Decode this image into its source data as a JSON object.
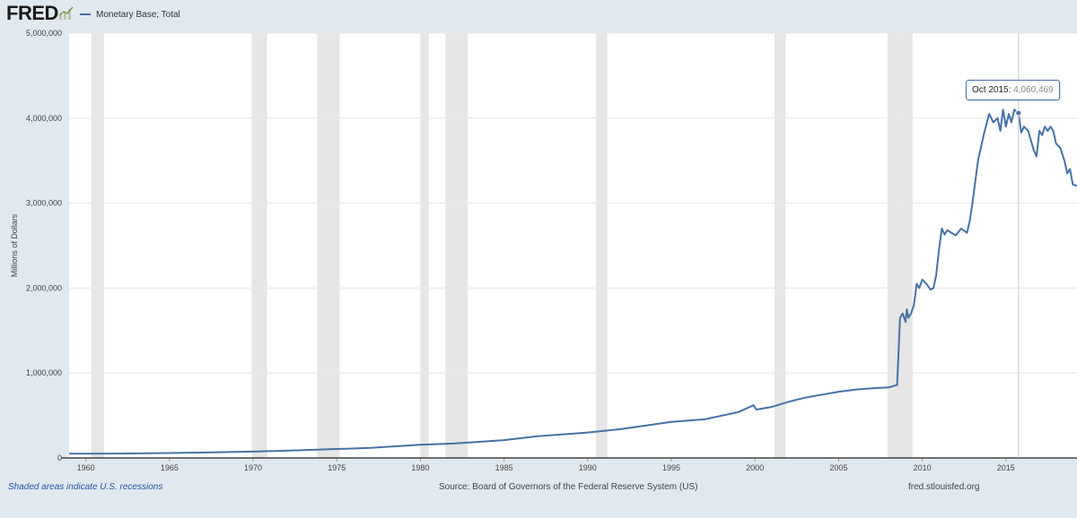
{
  "header": {
    "logo_text": "FRED",
    "logo_icon": "fred-chart-logo-icon"
  },
  "legend": {
    "label": "Monetary Base; Total",
    "color": "#4572a7"
  },
  "tooltip": {
    "date": "Oct 2015:",
    "value": "4,060,469"
  },
  "footer": {
    "note": "Shaded areas indicate U.S. recessions",
    "source": "Source: Board of Governors of the Federal Reserve System (US)",
    "url": "fred.stlouisfed.org"
  },
  "colors": {
    "page_background": "#e1e9f0",
    "plot_background": "#ffffff",
    "recession_shade": "#e6e6e6",
    "line": "#4572a7",
    "note_link": "#2255aa"
  },
  "chart_data": {
    "type": "line",
    "title": "",
    "xlabel": "",
    "ylabel": "Millions of Dollars",
    "xlim": [
      1959.0,
      2019.25
    ],
    "ylim": [
      0,
      5000000
    ],
    "x_ticks": [
      1960,
      1965,
      1970,
      1975,
      1980,
      1985,
      1990,
      1995,
      2000,
      2005,
      2010,
      2015
    ],
    "x_tick_labels": [
      "1960",
      "1965",
      "1970",
      "1975",
      "1980",
      "1985",
      "1990",
      "1995",
      "2000",
      "2005",
      "2010",
      "2015"
    ],
    "y_ticks": [
      0,
      1000000,
      2000000,
      3000000,
      4000000,
      5000000
    ],
    "y_tick_labels": [
      "0",
      "1,000,000",
      "2,000,000",
      "3,000,000",
      "4,000,000",
      "5,000,000"
    ],
    "grid": "horizontal",
    "legend_position": "top-left",
    "recessions": [
      [
        1960.33,
        1961.08
      ],
      [
        1969.92,
        1970.83
      ],
      [
        1973.83,
        1975.17
      ],
      [
        1980.0,
        1980.5
      ],
      [
        1981.5,
        1982.83
      ],
      [
        1990.5,
        1991.17
      ],
      [
        2001.17,
        2001.83
      ],
      [
        2007.92,
        2009.42
      ]
    ],
    "highlight": {
      "x": 2015.75,
      "y": 4060469
    },
    "series": [
      {
        "name": "Monetary Base; Total",
        "x": [
          1959.0,
          1960.0,
          1962.0,
          1965.0,
          1968.0,
          1970.0,
          1972.0,
          1975.0,
          1977.0,
          1980.0,
          1982.0,
          1985.0,
          1987.0,
          1990.0,
          1992.0,
          1995.0,
          1997.0,
          1999.0,
          1999.92,
          2000.08,
          2001.0,
          2002.0,
          2003.0,
          2005.0,
          2006.0,
          2007.0,
          2008.0,
          2008.5,
          2008.67,
          2008.83,
          2009.0,
          2009.08,
          2009.17,
          2009.33,
          2009.5,
          2009.67,
          2009.83,
          2010.0,
          2010.25,
          2010.5,
          2010.67,
          2010.83,
          2011.0,
          2011.17,
          2011.33,
          2011.5,
          2011.75,
          2012.0,
          2012.33,
          2012.67,
          2012.83,
          2013.0,
          2013.33,
          2013.67,
          2014.0,
          2014.25,
          2014.5,
          2014.67,
          2014.83,
          2015.0,
          2015.17,
          2015.33,
          2015.5,
          2015.75,
          2015.92,
          2016.08,
          2016.33,
          2016.67,
          2016.83,
          2017.0,
          2017.17,
          2017.33,
          2017.5,
          2017.67,
          2017.83,
          2018.0,
          2018.25,
          2018.5,
          2018.67,
          2018.83,
          2019.0,
          2019.25
        ],
        "y": [
          50000,
          50000,
          52000,
          58000,
          68000,
          75000,
          85000,
          105000,
          118000,
          155000,
          170000,
          210000,
          255000,
          300000,
          340000,
          425000,
          455000,
          540000,
          620000,
          570000,
          600000,
          660000,
          710000,
          780000,
          805000,
          820000,
          830000,
          860000,
          1650000,
          1700000,
          1600000,
          1750000,
          1650000,
          1700000,
          1800000,
          2050000,
          2000000,
          2100000,
          2050000,
          1980000,
          2000000,
          2150000,
          2450000,
          2700000,
          2630000,
          2680000,
          2650000,
          2620000,
          2700000,
          2650000,
          2780000,
          3000000,
          3500000,
          3800000,
          4050000,
          3950000,
          4000000,
          3850000,
          4100000,
          3900000,
          4050000,
          3950000,
          4100000,
          4060469,
          3830000,
          3900000,
          3850000,
          3620000,
          3550000,
          3850000,
          3800000,
          3900000,
          3850000,
          3900000,
          3850000,
          3700000,
          3650000,
          3500000,
          3350000,
          3400000,
          3220000,
          3200000
        ]
      }
    ]
  }
}
